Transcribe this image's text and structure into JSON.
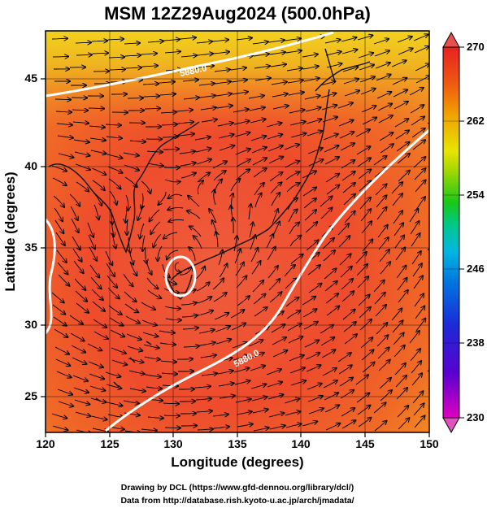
{
  "title": "MSM 12Z29Aug2024 (500.0hPa)",
  "xaxis": {
    "label": "Longitude (degrees)",
    "range": [
      120,
      150
    ],
    "ticks": [
      "120",
      "125",
      "130",
      "135",
      "140",
      "145",
      "150"
    ]
  },
  "yaxis": {
    "label": "Latitude  (degrees)",
    "range": [
      22.4,
      47.6
    ],
    "ticks": [
      "25",
      "30",
      "35",
      "40",
      "45"
    ]
  },
  "colorbar": {
    "range": [
      230,
      270
    ],
    "ticks": [
      "270",
      "262",
      "254",
      "246",
      "238",
      "230"
    ],
    "colors": [
      "#e000c0",
      "#1c2ad8",
      "#00b8e0",
      "#18c818",
      "#e8e400",
      "#e82020"
    ]
  },
  "contours": [
    {
      "label": "5880.0"
    },
    {
      "label": "5880.0"
    }
  ],
  "cyclone_center": {
    "lon": 130.5,
    "lat": 32.8
  },
  "credits": {
    "line1": "Drawing by DCL (https://www.gfd-dennou.org/library/dcl/)",
    "line2": "Data from http://database.rish.kyoto-u.ac.jp/arch/jmadata/"
  }
}
